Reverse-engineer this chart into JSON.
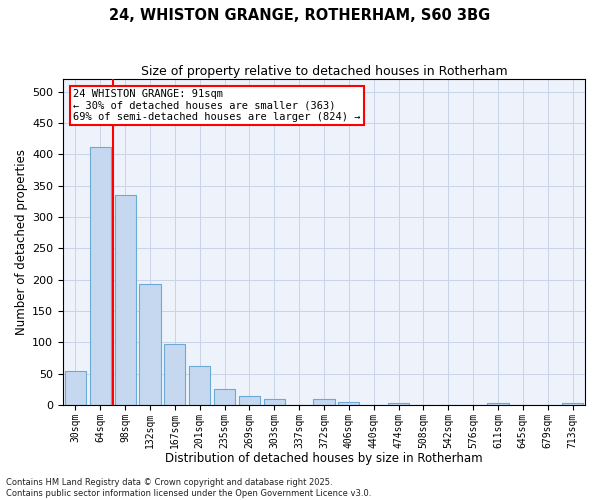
{
  "title1": "24, WHISTON GRANGE, ROTHERHAM, S60 3BG",
  "title2": "Size of property relative to detached houses in Rotherham",
  "xlabel": "Distribution of detached houses by size in Rotherham",
  "ylabel": "Number of detached properties",
  "categories": [
    "30sqm",
    "64sqm",
    "98sqm",
    "132sqm",
    "167sqm",
    "201sqm",
    "235sqm",
    "269sqm",
    "303sqm",
    "337sqm",
    "372sqm",
    "406sqm",
    "440sqm",
    "474sqm",
    "508sqm",
    "542sqm",
    "576sqm",
    "611sqm",
    "645sqm",
    "679sqm",
    "713sqm"
  ],
  "values": [
    54,
    412,
    335,
    193,
    97,
    62,
    25,
    14,
    10,
    0,
    9,
    5,
    0,
    3,
    0,
    0,
    0,
    3,
    0,
    0,
    3
  ],
  "bar_color": "#c5d8f0",
  "bar_edge_color": "#6aaad4",
  "bg_color": "#eef2fb",
  "grid_color": "#c8d4e8",
  "red_line_x": 1.5,
  "annotation_text": "24 WHISTON GRANGE: 91sqm\n← 30% of detached houses are smaller (363)\n69% of semi-detached houses are larger (824) →",
  "footer1": "Contains HM Land Registry data © Crown copyright and database right 2025.",
  "footer2": "Contains public sector information licensed under the Open Government Licence v3.0.",
  "ylim": [
    0,
    520
  ],
  "yticks": [
    0,
    50,
    100,
    150,
    200,
    250,
    300,
    350,
    400,
    450,
    500
  ]
}
